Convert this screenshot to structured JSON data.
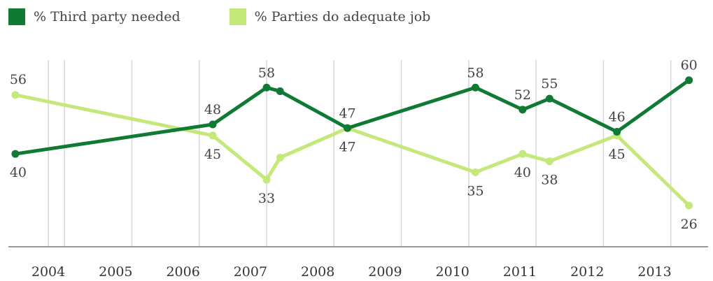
{
  "legend": {
    "items": [
      {
        "label": "% Third party needed",
        "color": "#0e7a33"
      },
      {
        "label": "% Parties do adequate job",
        "color": "#c4e87a"
      }
    ]
  },
  "chart_data": {
    "type": "line",
    "title": "",
    "xlabel": "",
    "ylabel": "",
    "categories": [
      "2004",
      "2005",
      "2006",
      "2007",
      "2008",
      "2009",
      "2010",
      "2011",
      "2012",
      "2013"
    ],
    "xlim": [
      2003.75,
      2013.95
    ],
    "ylim": [
      15,
      70
    ],
    "grid": "vertical",
    "legend_position": "top-left",
    "series": [
      {
        "name": "% Third party needed",
        "color": "#0e7a33",
        "x": [
          2003.77,
          2006.7,
          2007.5,
          2007.7,
          2008.7,
          2010.6,
          2011.3,
          2011.7,
          2012.7,
          2013.77
        ],
        "y": [
          40,
          48,
          58,
          57,
          47,
          58,
          52,
          55,
          46,
          60
        ],
        "labels": [
          "40",
          "48",
          "58",
          "",
          "47",
          "58",
          "52",
          "55",
          "46",
          "60"
        ]
      },
      {
        "name": "% Parties do adequate job",
        "color": "#c4e87a",
        "x": [
          2003.77,
          2006.7,
          2007.5,
          2007.7,
          2008.7,
          2010.6,
          2011.3,
          2011.7,
          2012.7,
          2013.77
        ],
        "y": [
          56,
          45,
          33,
          39,
          47,
          35,
          40,
          38,
          45,
          26
        ],
        "labels": [
          "56",
          "45",
          "33",
          "",
          "47",
          "35",
          "40",
          "38",
          "45",
          "26"
        ]
      }
    ]
  }
}
